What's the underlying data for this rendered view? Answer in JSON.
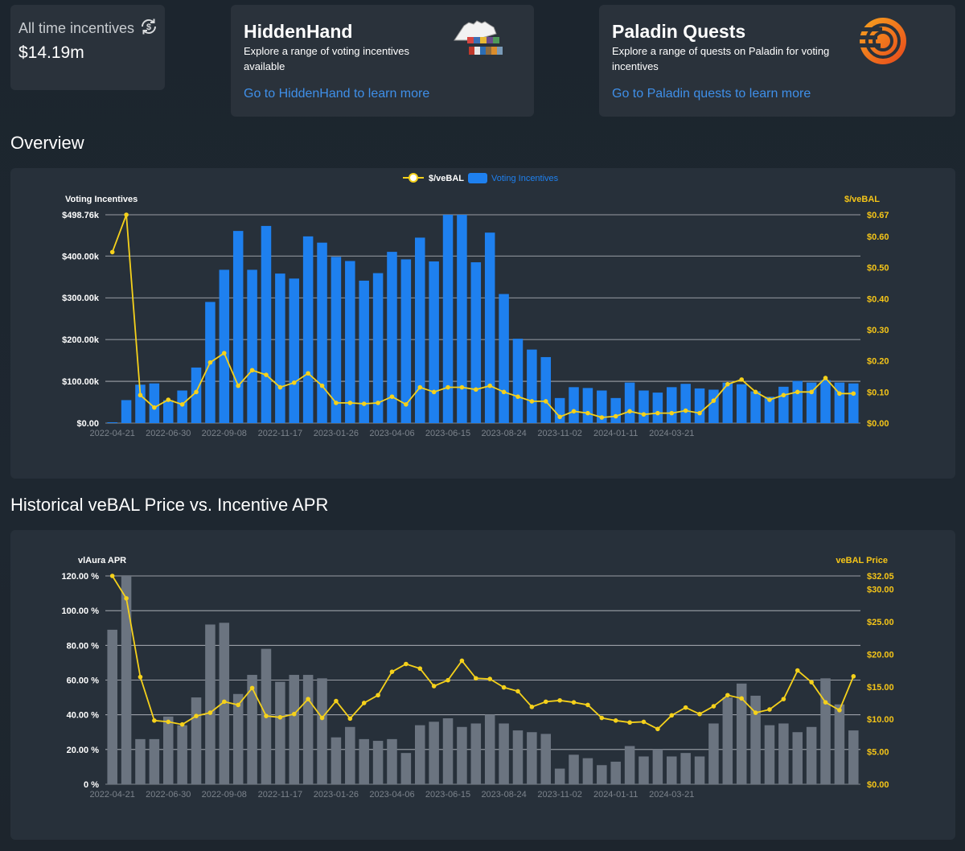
{
  "stats": {
    "label": "All time incentives",
    "value": "$14.19m"
  },
  "hiddenhand": {
    "title": "HiddenHand",
    "description": "Explore a range of voting incentives available",
    "link": "Go to HiddenHand to learn more"
  },
  "paladin": {
    "title": "Paladin Quests",
    "description": "Explore a range of quests on Paladin for voting incentives",
    "link": "Go to Paladin quests to learn more"
  },
  "sections": {
    "overview": "Overview",
    "historical": "Historical veBAL Price vs. Incentive APR"
  },
  "colors": {
    "bar_blue": "#1e80ef",
    "bar_gray": "#6b7480",
    "line_yellow": "#f5d11b",
    "link_blue": "#3f8fe8"
  },
  "chart_data": [
    {
      "type": "bar",
      "title": "Overview",
      "legend": [
        "$/veBAL",
        "Voting Incentives"
      ],
      "legend_position": "top-center",
      "y_left_label": "Voting Incentives",
      "y_right_label": "$/veBAL",
      "y_left_ticks": [
        "$0.00",
        "$100.00k",
        "$200.00k",
        "$300.00k",
        "$400.00k",
        "$498.76k"
      ],
      "y_right_ticks": [
        "$0.00",
        "$0.10",
        "$0.20",
        "$0.30",
        "$0.40",
        "$0.50",
        "$0.60",
        "$0.67"
      ],
      "x_ticks": [
        "2022-04-21",
        "2022-06-30",
        "2022-09-08",
        "2022-11-17",
        "2023-01-26",
        "2023-04-06",
        "2023-06-15",
        "2023-08-24",
        "2023-11-02",
        "2024-01-11",
        "2024-03-21"
      ],
      "ylim_left": [
        0,
        498760
      ],
      "ylim_right": [
        0,
        0.67
      ],
      "series": [
        {
          "name": "Voting Incentives",
          "axis": "left",
          "kind": "bar",
          "values": [
            2000,
            55000,
            92000,
            95000,
            55000,
            78000,
            133000,
            290000,
            367000,
            460000,
            367000,
            472000,
            358000,
            346000,
            447000,
            432000,
            398000,
            388000,
            341000,
            359000,
            410000,
            392000,
            444000,
            387000,
            499000,
            499000,
            385000,
            456000,
            309000,
            202000,
            176000,
            158000,
            60000,
            86000,
            84000,
            78000,
            60000,
            97000,
            78000,
            73000,
            86000,
            94000,
            83000,
            80000,
            97000,
            93000,
            76000,
            63000,
            87000,
            101000,
            97000,
            103000,
            97000,
            95000
          ]
        },
        {
          "name": "$/veBAL",
          "axis": "right",
          "kind": "line",
          "values": [
            0.55,
            0.67,
            0.09,
            0.05,
            0.075,
            0.06,
            0.1,
            0.195,
            0.225,
            0.12,
            0.17,
            0.155,
            0.115,
            0.13,
            0.16,
            0.12,
            0.065,
            0.065,
            0.062,
            0.065,
            0.085,
            0.06,
            0.115,
            0.1,
            0.115,
            0.115,
            0.108,
            0.12,
            0.1,
            0.085,
            0.07,
            0.07,
            0.02,
            0.038,
            0.032,
            0.018,
            0.022,
            0.038,
            0.028,
            0.032,
            0.032,
            0.04,
            0.032,
            0.072,
            0.125,
            0.14,
            0.1,
            0.075,
            0.09,
            0.1,
            0.1,
            0.145,
            0.095,
            0.095
          ]
        }
      ]
    },
    {
      "type": "bar",
      "title": "Historical veBAL Price vs. Incentive APR",
      "y_left_label": "vlAura APR",
      "y_right_label": "veBAL Price",
      "y_left_ticks": [
        "0 %",
        "20.00 %",
        "40.00 %",
        "60.00 %",
        "80.00 %",
        "100.00 %",
        "120.00 %"
      ],
      "y_right_ticks": [
        "$0.00",
        "$5.00",
        "$10.00",
        "$15.00",
        "$20.00",
        "$25.00",
        "$30.00",
        "$32.05"
      ],
      "x_ticks": [
        "2022-04-21",
        "2022-06-30",
        "2022-09-08",
        "2022-11-17",
        "2023-01-26",
        "2023-04-06",
        "2023-06-15",
        "2023-08-24",
        "2023-11-02",
        "2024-01-11",
        "2024-03-21"
      ],
      "ylim_left": [
        0,
        120
      ],
      "ylim_right": [
        0,
        32.05
      ],
      "series": [
        {
          "name": "vlAura APR",
          "axis": "left",
          "kind": "bar",
          "values": [
            89,
            121,
            26,
            26,
            39,
            34,
            50,
            92,
            93,
            52,
            63,
            78,
            59,
            63,
            63,
            61,
            27,
            33,
            26,
            25,
            26,
            18,
            34,
            36,
            38,
            33,
            35,
            40,
            35,
            31,
            30,
            29,
            9,
            17,
            15,
            11,
            13,
            22,
            16,
            20,
            16,
            18,
            16,
            35,
            50,
            58,
            51,
            34,
            35,
            30,
            33,
            61,
            46,
            31
          ]
        },
        {
          "name": "veBAL Price",
          "axis": "right",
          "kind": "line",
          "values": [
            32.05,
            28.6,
            16.5,
            9.8,
            9.6,
            9.2,
            10.5,
            11.0,
            12.7,
            12.2,
            14.8,
            10.5,
            10.3,
            10.8,
            13.1,
            10.2,
            12.8,
            10.1,
            12.5,
            13.7,
            17.3,
            18.5,
            17.8,
            15.1,
            16.0,
            19.0,
            16.3,
            16.2,
            14.9,
            14.3,
            11.9,
            12.7,
            12.9,
            12.6,
            12.2,
            10.2,
            9.8,
            9.5,
            9.6,
            8.5,
            10.6,
            11.8,
            10.8,
            12.0,
            13.7,
            13.2,
            11.0,
            11.5,
            13.1,
            17.5,
            15.7,
            12.6,
            11.4,
            16.6
          ]
        }
      ]
    }
  ]
}
